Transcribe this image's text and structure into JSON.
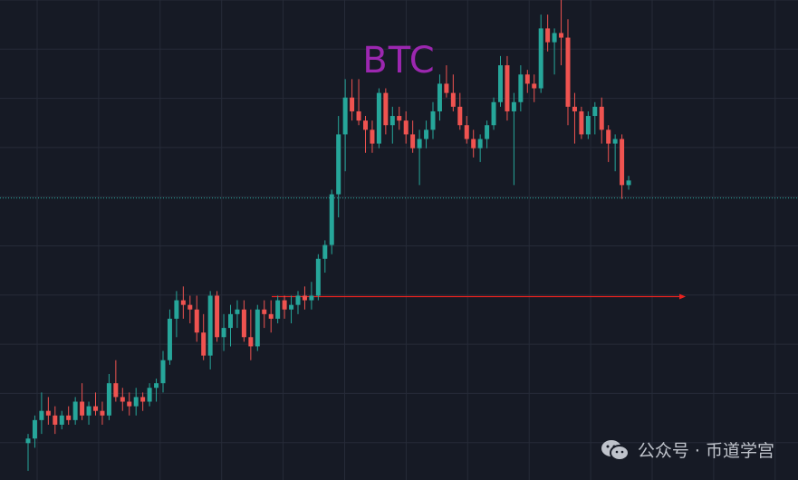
{
  "chart_data": {
    "type": "candlestick",
    "title": "BTC",
    "price_range": [
      0,
      100
    ],
    "grid": true,
    "candles": [
      [
        8,
        10,
        2,
        9
      ],
      [
        9,
        14,
        7,
        13
      ],
      [
        13,
        19,
        10,
        15
      ],
      [
        15,
        18,
        12,
        14
      ],
      [
        14,
        16,
        10,
        12
      ],
      [
        12,
        15,
        11,
        14
      ],
      [
        14,
        16,
        12,
        13
      ],
      [
        13,
        18,
        12,
        17
      ],
      [
        17,
        21,
        13,
        14
      ],
      [
        14,
        17,
        12,
        16
      ],
      [
        16,
        19,
        14,
        15
      ],
      [
        15,
        17,
        12,
        14
      ],
      [
        14,
        23,
        13,
        21
      ],
      [
        21,
        26,
        17,
        18
      ],
      [
        18,
        20,
        15,
        17
      ],
      [
        17,
        19,
        14,
        16
      ],
      [
        16,
        20,
        14,
        18
      ],
      [
        18,
        19,
        15,
        17
      ],
      [
        17,
        21,
        16,
        20
      ],
      [
        20,
        22,
        17,
        21
      ],
      [
        21,
        28,
        19,
        26
      ],
      [
        26,
        37,
        25,
        35
      ],
      [
        35,
        41,
        31,
        39
      ],
      [
        39,
        42,
        35,
        38
      ],
      [
        38,
        40,
        34,
        37
      ],
      [
        37,
        40,
        30,
        32
      ],
      [
        32,
        36,
        26,
        27
      ],
      [
        27,
        41,
        24,
        40
      ],
      [
        40,
        41,
        30,
        31
      ],
      [
        31,
        36,
        28,
        33
      ],
      [
        33,
        38,
        29,
        36
      ],
      [
        36,
        39,
        33,
        37
      ],
      [
        37,
        39,
        30,
        31
      ],
      [
        31,
        37,
        26,
        29
      ],
      [
        29,
        38,
        28,
        37
      ],
      [
        37,
        39,
        33,
        36
      ],
      [
        36,
        39,
        32,
        35
      ],
      [
        35,
        40,
        34,
        39
      ],
      [
        39,
        40,
        35,
        37
      ],
      [
        37,
        40,
        34,
        38
      ],
      [
        38,
        41,
        36,
        40
      ],
      [
        40,
        42,
        37,
        39
      ],
      [
        39,
        43,
        37,
        40
      ],
      [
        40,
        49,
        39,
        48
      ],
      [
        48,
        52,
        45,
        51
      ],
      [
        51,
        63,
        49,
        62
      ],
      [
        62,
        79,
        57,
        75
      ],
      [
        75,
        87,
        67,
        83
      ],
      [
        83,
        87,
        78,
        80
      ],
      [
        80,
        87,
        77,
        78
      ],
      [
        78,
        79,
        71,
        76
      ],
      [
        76,
        78,
        71,
        73
      ],
      [
        73,
        85,
        72,
        84
      ],
      [
        84,
        85,
        75,
        77
      ],
      [
        77,
        81,
        73,
        79
      ],
      [
        79,
        81,
        76,
        78
      ],
      [
        78,
        80,
        73,
        75
      ],
      [
        75,
        78,
        71,
        72
      ],
      [
        72,
        76,
        64,
        74
      ],
      [
        74,
        78,
        72,
        76
      ],
      [
        76,
        82,
        74,
        80
      ],
      [
        80,
        88,
        78,
        86
      ],
      [
        86,
        90,
        83,
        84
      ],
      [
        84,
        88,
        80,
        81
      ],
      [
        81,
        84,
        76,
        77
      ],
      [
        77,
        79,
        73,
        74
      ],
      [
        74,
        76,
        70,
        72
      ],
      [
        72,
        75,
        69,
        74
      ],
      [
        74,
        78,
        72,
        77
      ],
      [
        77,
        83,
        76,
        82
      ],
      [
        82,
        92,
        81,
        90
      ],
      [
        90,
        92,
        78,
        80
      ],
      [
        80,
        84,
        64,
        82
      ],
      [
        82,
        90,
        80,
        88
      ],
      [
        88,
        89,
        84,
        86
      ],
      [
        86,
        88,
        82,
        85
      ],
      [
        85,
        101,
        84,
        98
      ],
      [
        98,
        101,
        93,
        95
      ],
      [
        95,
        98,
        88,
        97
      ],
      [
        97,
        108,
        90,
        96
      ],
      [
        96,
        100,
        77,
        81
      ],
      [
        81,
        84,
        73,
        80
      ],
      [
        80,
        81,
        74,
        75
      ],
      [
        75,
        80,
        74,
        79
      ],
      [
        79,
        82,
        75,
        81
      ],
      [
        81,
        83,
        73,
        76
      ],
      [
        76,
        77,
        69,
        73
      ],
      [
        73,
        75,
        67,
        74
      ],
      [
        74,
        75,
        61,
        64
      ],
      [
        64,
        66,
        63,
        65
      ]
    ],
    "horizontal_lines": [
      {
        "price": 61.2,
        "style": "dotted",
        "color": "#26a69a"
      },
      {
        "price": 39.8,
        "style": "solid",
        "color": "#e8221f",
        "arrow": true
      }
    ]
  },
  "watermark": {
    "text": "公众号 · 币道学宫",
    "icon": "wechat-icon"
  },
  "colors": {
    "background": "#161a25",
    "grid": "#262b38",
    "up": "#26a69a",
    "down": "#ef5350",
    "title": "#9c27b0"
  }
}
